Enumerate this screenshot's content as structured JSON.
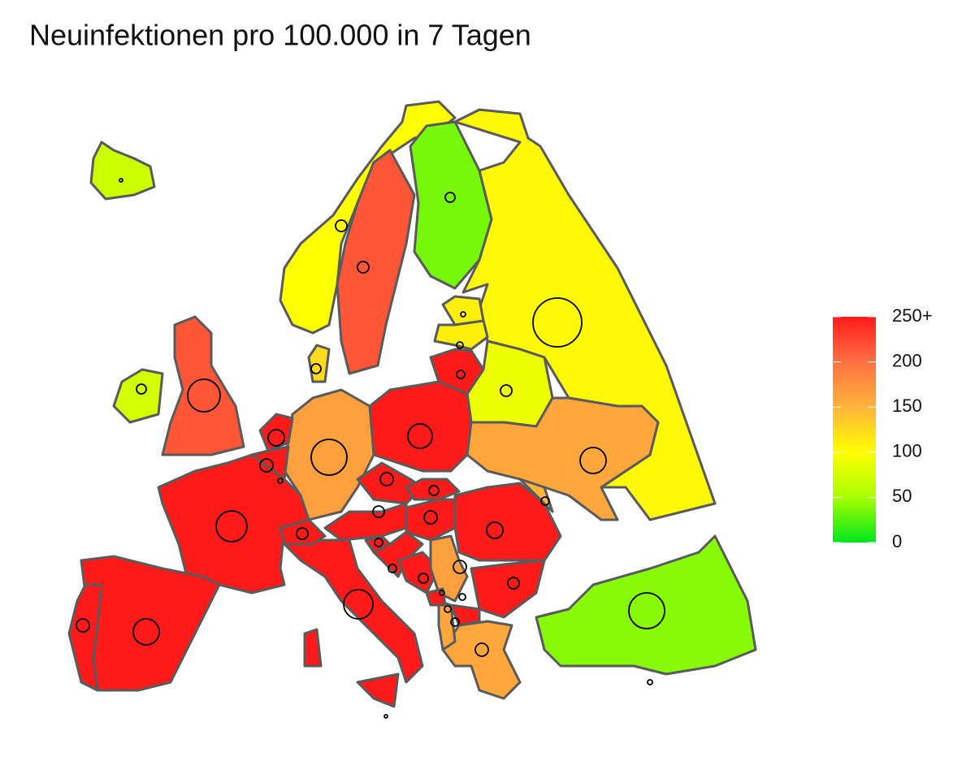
{
  "title": "Neuinfektionen pro 100.000 in 7 Tagen",
  "legend": {
    "lim": [
      0,
      250
    ],
    "ticks": [
      {
        "value": 250,
        "label": "250+"
      },
      200,
      150,
      100,
      50,
      0
    ],
    "colors": [
      "#ff1a1a",
      "#ff7043",
      "#ffb43c",
      "#ffff00",
      "#a8ff00",
      "#00e61e"
    ]
  },
  "regions": {
    "values": [
      70,
      100,
      215,
      35,
      105,
      110,
      110,
      250,
      90,
      160,
      250,
      165,
      125,
      250,
      250,
      250,
      250,
      250,
      215,
      75,
      250,
      250,
      250,
      250,
      250,
      250,
      250,
      250,
      250,
      165,
      250,
      250,
      160,
      40,
      150,
      250,
      160,
      250
    ]
  }
}
